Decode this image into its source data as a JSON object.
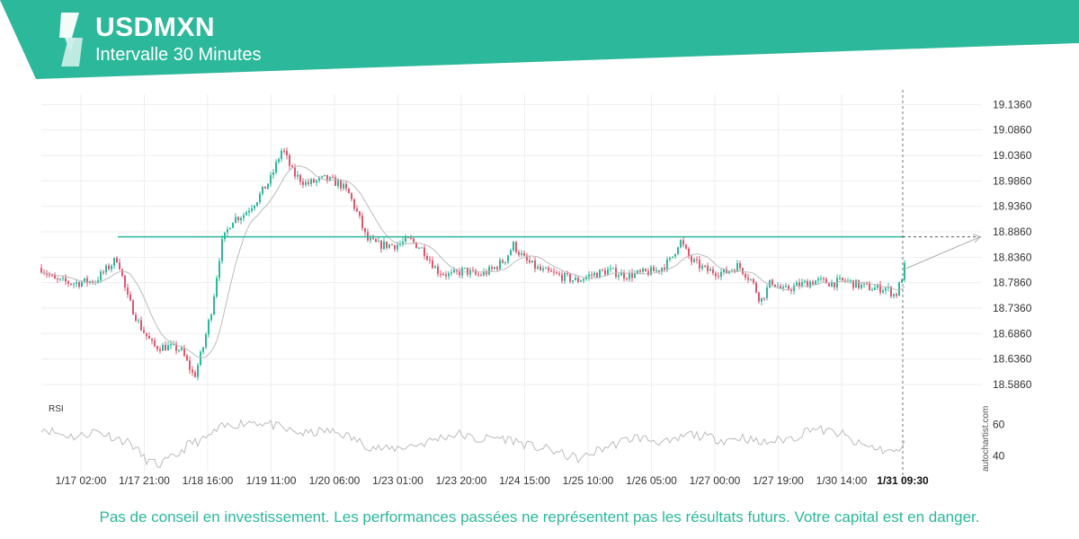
{
  "header": {
    "symbol": "USDMXN",
    "interval": "Intervalle 30 Minutes",
    "banner_color": "#2bb89b"
  },
  "chart_data": {
    "type": "candlestick",
    "price_axis": {
      "ticks": [
        "19.1360",
        "19.0860",
        "19.0360",
        "18.9860",
        "18.9360",
        "18.8860",
        "18.8360",
        "18.7860",
        "18.7360",
        "18.6860",
        "18.6360",
        "18.5860"
      ],
      "range": [
        18.556,
        19.156
      ]
    },
    "time_axis": {
      "ticks": [
        "1/17 02:00",
        "1/17 21:00",
        "1/18 16:00",
        "1/19 11:00",
        "1/20 06:00",
        "1/23 01:00",
        "1/23 20:00",
        "1/24 15:00",
        "1/25 10:00",
        "1/26 05:00",
        "1/27 00:00",
        "1/27 19:00",
        "1/30 14:00",
        "1/31 09:30"
      ],
      "current": "1/31 09:30"
    },
    "price_path": [
      [
        0,
        18.815
      ],
      [
        15,
        18.79
      ],
      [
        35,
        18.785
      ],
      [
        60,
        18.79
      ],
      [
        85,
        18.835
      ],
      [
        95,
        18.76
      ],
      [
        110,
        18.7
      ],
      [
        125,
        18.66
      ],
      [
        140,
        18.66
      ],
      [
        155,
        18.655
      ],
      [
        170,
        18.6
      ],
      [
        180,
        18.66
      ],
      [
        190,
        18.74
      ],
      [
        200,
        18.86
      ],
      [
        212,
        18.91
      ],
      [
        225,
        18.92
      ],
      [
        240,
        18.95
      ],
      [
        255,
        18.99
      ],
      [
        268,
        19.05
      ],
      [
        280,
        19.0
      ],
      [
        295,
        18.98
      ],
      [
        315,
        18.99
      ],
      [
        332,
        18.98
      ],
      [
        342,
        18.96
      ],
      [
        352,
        18.92
      ],
      [
        362,
        18.87
      ],
      [
        375,
        18.86
      ],
      [
        395,
        18.86
      ],
      [
        410,
        18.87
      ],
      [
        425,
        18.85
      ],
      [
        440,
        18.81
      ],
      [
        455,
        18.8
      ],
      [
        470,
        18.81
      ],
      [
        485,
        18.8
      ],
      [
        500,
        18.81
      ],
      [
        515,
        18.83
      ],
      [
        525,
        18.86
      ],
      [
        538,
        18.83
      ],
      [
        555,
        18.81
      ],
      [
        575,
        18.8
      ],
      [
        595,
        18.79
      ],
      [
        610,
        18.8
      ],
      [
        630,
        18.81
      ],
      [
        650,
        18.8
      ],
      [
        670,
        18.805
      ],
      [
        685,
        18.81
      ],
      [
        700,
        18.83
      ],
      [
        710,
        18.87
      ],
      [
        722,
        18.83
      ],
      [
        740,
        18.81
      ],
      [
        760,
        18.805
      ],
      [
        775,
        18.82
      ],
      [
        790,
        18.79
      ],
      [
        800,
        18.75
      ],
      [
        812,
        18.79
      ],
      [
        825,
        18.77
      ],
      [
        840,
        18.78
      ],
      [
        860,
        18.79
      ],
      [
        880,
        18.785
      ],
      [
        895,
        18.79
      ],
      [
        910,
        18.78
      ],
      [
        925,
        18.775
      ],
      [
        940,
        18.775
      ],
      [
        950,
        18.76
      ],
      [
        955,
        18.785
      ],
      [
        962,
        18.83
      ]
    ],
    "resistance_level": 18.876,
    "forecast_target": 18.876,
    "rsi": {
      "label": "RSI",
      "ticks": [
        "60",
        "40"
      ],
      "range": [
        30,
        70
      ],
      "path": [
        [
          0,
          58
        ],
        [
          20,
          54
        ],
        [
          40,
          52
        ],
        [
          60,
          56
        ],
        [
          80,
          52
        ],
        [
          100,
          48
        ],
        [
          115,
          38
        ],
        [
          130,
          34
        ],
        [
          150,
          40
        ],
        [
          165,
          48
        ],
        [
          180,
          50
        ],
        [
          200,
          58
        ],
        [
          215,
          60
        ],
        [
          235,
          62
        ],
        [
          255,
          60
        ],
        [
          275,
          56
        ],
        [
          295,
          54
        ],
        [
          315,
          56
        ],
        [
          335,
          54
        ],
        [
          350,
          50
        ],
        [
          365,
          46
        ],
        [
          385,
          44
        ],
        [
          405,
          46
        ],
        [
          425,
          48
        ],
        [
          445,
          52
        ],
        [
          465,
          54
        ],
        [
          485,
          50
        ],
        [
          505,
          52
        ],
        [
          525,
          50
        ],
        [
          545,
          46
        ],
        [
          565,
          44
        ],
        [
          585,
          40
        ],
        [
          600,
          38
        ],
        [
          620,
          44
        ],
        [
          640,
          48
        ],
        [
          660,
          52
        ],
        [
          680,
          50
        ],
        [
          700,
          48
        ],
        [
          720,
          54
        ],
        [
          740,
          52
        ],
        [
          760,
          50
        ],
        [
          780,
          52
        ],
        [
          800,
          48
        ],
        [
          820,
          50
        ],
        [
          840,
          52
        ],
        [
          855,
          58
        ],
        [
          870,
          56
        ],
        [
          890,
          54
        ],
        [
          905,
          48
        ],
        [
          920,
          46
        ],
        [
          935,
          44
        ],
        [
          950,
          42
        ],
        [
          962,
          48
        ]
      ]
    },
    "colors": {
      "bull": "#2bb89b",
      "bear": "#e0566f",
      "level": "#2bb89b",
      "ma": "#bbbbbb",
      "rsi": "#bbbbbb",
      "grid": "#eeeeee"
    },
    "watermark": "autochartist.com"
  },
  "disclaimer": "Pas de conseil en investissement. Les performances passées ne représentent pas les résultats futurs. Votre capital est en danger."
}
